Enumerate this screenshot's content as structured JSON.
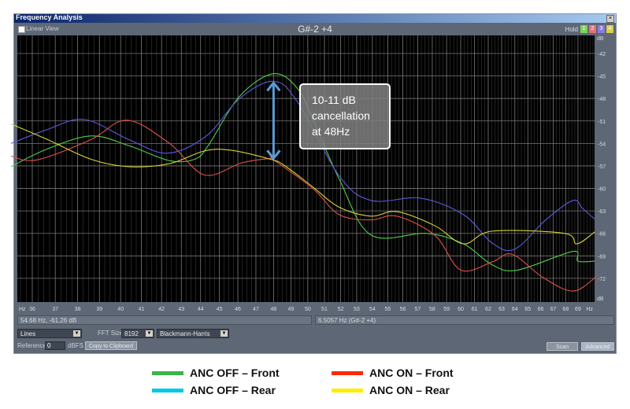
{
  "window": {
    "title": "Frequency Analysis",
    "close_icon": "close-icon",
    "linear_view_label": "Linear View",
    "linear_view_checked": false,
    "note_display": "G#-2 +4",
    "hold_label": "Hold",
    "hold_buttons": [
      {
        "label": "1",
        "color": "#7fd35a"
      },
      {
        "label": "2",
        "color": "#e8707a"
      },
      {
        "label": "3",
        "color": "#8a7be0"
      },
      {
        "label": "4",
        "color": "#d8cf48"
      }
    ]
  },
  "status": {
    "cursor_readout": "54.68 Hz, -61.26 dB",
    "peak_readout": "6.5057 Hz (G#-2 +4)"
  },
  "controls": {
    "display_mode": "Lines",
    "fft_size_label": "FFT Size",
    "fft_size": "8192",
    "window_function": "Blackmann-Harris",
    "reference_label": "Reference",
    "reference_value": "0",
    "reference_unit": "dBFS",
    "copy_button": "Copy to Clipboard",
    "scan_button": "Scan",
    "advanced_button": "Advanced"
  },
  "annotation": {
    "lines": [
      "10-11 dB",
      "cancellation",
      "at 48Hz"
    ]
  },
  "legend": [
    {
      "label": "ANC OFF – Front",
      "color": "#3cb44b"
    },
    {
      "label": "ANC ON – Front",
      "color": "#ff2a00"
    },
    {
      "label": "ANC OFF – Rear",
      "color": "#00c8e6"
    },
    {
      "label": "ANC ON – Rear",
      "color": "#ffee00"
    }
  ],
  "chart_data": {
    "type": "line",
    "x_scale": "log",
    "xlabel": "Hz",
    "ylabel": "dB",
    "x_unit_label_left": "Hz",
    "x_unit_label_right": "Hz",
    "y_unit_label_top": "dB",
    "y_unit_label_bottom": "dB",
    "xlim": [
      35,
      70.5
    ],
    "ylim": [
      -74.8,
      -39.8
    ],
    "x_ticks": [
      36,
      37,
      38,
      39,
      40,
      41,
      42,
      43,
      44,
      45,
      46,
      47,
      48,
      49,
      50,
      51,
      52,
      53,
      54,
      55,
      56,
      57,
      58,
      59,
      60,
      61,
      62,
      63,
      64,
      65,
      66,
      67,
      68,
      69
    ],
    "y_ticks": [
      -42,
      -45,
      -48,
      -51,
      -54,
      -57,
      -60,
      -63,
      -66,
      -69,
      -72
    ],
    "grid": true,
    "background": "#000000",
    "series": [
      {
        "name": "ANC OFF – Front",
        "color": "#4fcf4a",
        "points": [
          [
            35.1,
            -57.1
          ],
          [
            36.6,
            -54.8
          ],
          [
            38.6,
            -53.0
          ],
          [
            40.4,
            -54.3
          ],
          [
            42.4,
            -56.3
          ],
          [
            43.7,
            -56.1
          ],
          [
            44.4,
            -54.3
          ],
          [
            46.1,
            -47.7
          ],
          [
            48.0,
            -44.7
          ],
          [
            49.4,
            -46.7
          ],
          [
            50.4,
            -51.3
          ],
          [
            51.9,
            -58.7
          ],
          [
            53.9,
            -66.2
          ],
          [
            57.6,
            -66.0
          ],
          [
            60.2,
            -67.4
          ],
          [
            62.3,
            -70.2
          ],
          [
            64.2,
            -70.9
          ],
          [
            68.6,
            -68.4
          ],
          [
            69.0,
            -69.7
          ],
          [
            70.4,
            -69.7
          ]
        ]
      },
      {
        "name": "ANC OFF – Rear",
        "color": "#5a5ae0",
        "points": [
          [
            35.1,
            -54.0
          ],
          [
            36.6,
            -52.2
          ],
          [
            38.3,
            -50.8
          ],
          [
            40.4,
            -53.5
          ],
          [
            42.3,
            -55.3
          ],
          [
            44.3,
            -53.0
          ],
          [
            46.1,
            -48.0
          ],
          [
            48.0,
            -45.7
          ],
          [
            49.4,
            -48.5
          ],
          [
            51.9,
            -58.3
          ],
          [
            53.9,
            -61.6
          ],
          [
            57.2,
            -61.3
          ],
          [
            60.2,
            -63.5
          ],
          [
            62.3,
            -67.3
          ],
          [
            64.0,
            -68.1
          ],
          [
            66.4,
            -64.2
          ],
          [
            68.6,
            -61.6
          ],
          [
            69.4,
            -62.7
          ],
          [
            70.4,
            -64.1
          ]
        ]
      },
      {
        "name": "ANC ON – Front",
        "color": "#e0504a",
        "points": [
          [
            35.1,
            -55.7
          ],
          [
            36.2,
            -56.2
          ],
          [
            38.6,
            -53.5
          ],
          [
            40.3,
            -50.9
          ],
          [
            42.4,
            -54.0
          ],
          [
            44.2,
            -58.2
          ],
          [
            46.2,
            -56.6
          ],
          [
            47.8,
            -56.0
          ],
          [
            48.0,
            -56.2
          ],
          [
            50.3,
            -60.0
          ],
          [
            51.9,
            -63.5
          ],
          [
            53.9,
            -64.2
          ],
          [
            55.6,
            -63.7
          ],
          [
            58.2,
            -66.3
          ],
          [
            60.0,
            -70.9
          ],
          [
            62.3,
            -69.8
          ],
          [
            63.8,
            -68.8
          ],
          [
            66.2,
            -71.9
          ],
          [
            68.6,
            -73.7
          ],
          [
            70.5,
            -71.8
          ]
        ]
      },
      {
        "name": "ANC ON – Rear",
        "color": "#d8d23a",
        "points": [
          [
            35.1,
            -51.4
          ],
          [
            36.6,
            -53.4
          ],
          [
            38.6,
            -56.1
          ],
          [
            40.4,
            -57.1
          ],
          [
            42.4,
            -56.7
          ],
          [
            44.2,
            -55.0
          ],
          [
            45.6,
            -54.9
          ],
          [
            47.8,
            -56.1
          ],
          [
            48.6,
            -56.9
          ],
          [
            50.3,
            -59.8
          ],
          [
            51.9,
            -62.5
          ],
          [
            53.9,
            -63.7
          ],
          [
            55.6,
            -63.1
          ],
          [
            58.2,
            -65.0
          ],
          [
            60.2,
            -67.4
          ],
          [
            62.3,
            -65.7
          ],
          [
            67.9,
            -66.0
          ],
          [
            68.9,
            -67.4
          ],
          [
            70.4,
            -65.8
          ]
        ]
      }
    ],
    "annotation_arrow": {
      "x": 48,
      "from_db": -45.7,
      "to_db": -56.2,
      "color": "#5b9bd5"
    }
  }
}
